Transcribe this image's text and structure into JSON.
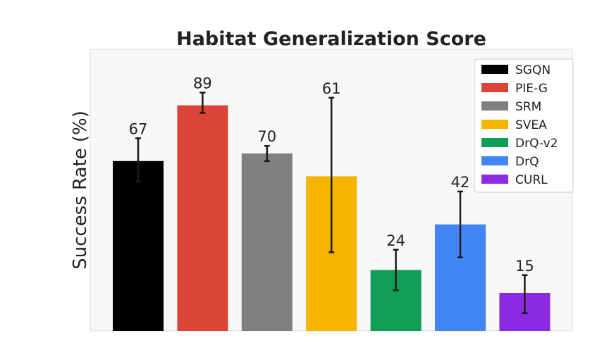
{
  "chart_data": {
    "type": "bar",
    "title": "Habitat Generalization Score",
    "xlabel": "",
    "ylabel": "Success Rate (%)",
    "ylim": [
      0,
      100
    ],
    "grid": false,
    "legend_position": "top-right",
    "categories": [
      "SGQN",
      "PIE-G",
      "SRM",
      "SVEA",
      "DrQ-v2",
      "DrQ",
      "CURL"
    ],
    "values": [
      67,
      89,
      70,
      61,
      24,
      42,
      15
    ],
    "errors": [
      [
        59,
        76
      ],
      [
        86,
        94
      ],
      [
        67,
        73
      ],
      [
        31,
        92
      ],
      [
        16,
        32
      ],
      [
        29,
        55
      ],
      [
        7,
        22
      ]
    ],
    "colors": [
      "#000000",
      "#db4437",
      "#808080",
      "#f4b400",
      "#0f9d58",
      "#4285f4",
      "#8a2be2"
    ],
    "legend": [
      "SGQN",
      "PIE-G",
      "SRM",
      "SVEA",
      "DrQ-v2",
      "DrQ",
      "CURL"
    ]
  }
}
